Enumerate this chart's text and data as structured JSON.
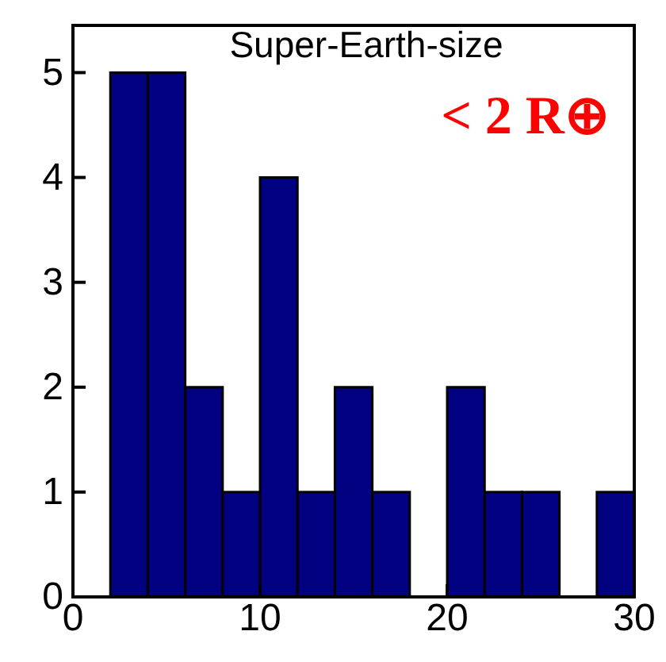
{
  "chart_data": {
    "type": "histogram",
    "title": "Super-Earth-size",
    "annotations": [
      "< 2 R⊕"
    ],
    "bins": [
      2,
      4,
      6,
      8,
      10,
      12,
      14,
      16,
      18,
      20,
      22,
      24,
      26,
      28,
      30
    ],
    "values": [
      5,
      5,
      2,
      1,
      4,
      1,
      2,
      1,
      0,
      2,
      1,
      1,
      0,
      1
    ],
    "color": "#000080",
    "xlim": [
      0,
      30
    ],
    "xticks": [
      0,
      10,
      20,
      30
    ],
    "ylim": [
      0,
      5.45
    ],
    "yticks": [
      0,
      1,
      2,
      3,
      4,
      5
    ]
  }
}
